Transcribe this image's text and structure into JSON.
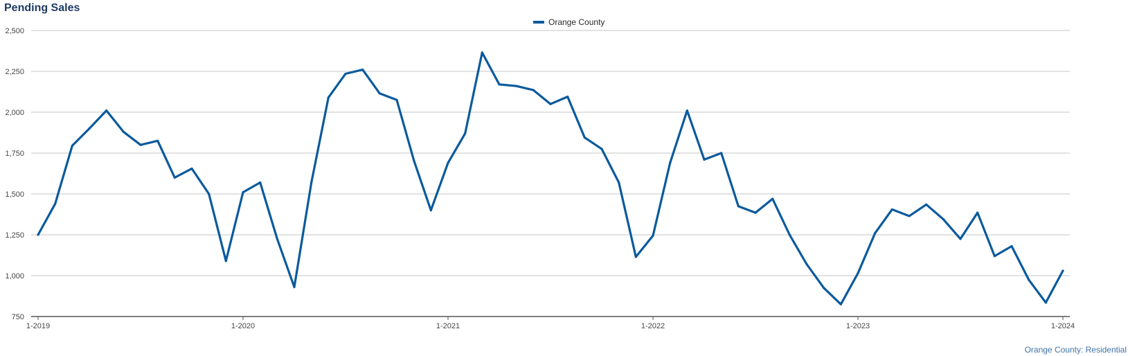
{
  "page": {
    "footer_label": "Orange County: Residential"
  },
  "chart_data": {
    "type": "line",
    "title": "Pending Sales",
    "xlabel": "",
    "ylabel": "",
    "ylim": [
      750,
      2500
    ],
    "y_ticks": [
      750,
      1000,
      1250,
      1500,
      1750,
      2000,
      2250,
      2500
    ],
    "y_tick_labels": [
      "750",
      "1,000",
      "1,250",
      "1,500",
      "1,750",
      "2,000",
      "2,250",
      "2,500"
    ],
    "x_tick_labels": [
      "1-2019",
      "1-2020",
      "1-2021",
      "1-2022",
      "1-2023",
      "1-2024"
    ],
    "x_tick_indices": [
      0,
      12,
      24,
      36,
      48,
      60
    ],
    "grid": true,
    "legend_position": "top-center",
    "color": "#0a5a9c",
    "series": [
      {
        "name": "Orange County",
        "values": [
          1250,
          1440,
          1795,
          1900,
          2010,
          1880,
          1800,
          1825,
          1600,
          1655,
          1500,
          1090,
          1510,
          1570,
          1225,
          930,
          1570,
          2090,
          2235,
          2260,
          2115,
          2075,
          1705,
          1400,
          1690,
          1870,
          2365,
          2170,
          2160,
          2135,
          2050,
          2095,
          1845,
          1775,
          1570,
          1115,
          1245,
          1690,
          2010,
          1710,
          1750,
          1425,
          1385,
          1470,
          1250,
          1070,
          925,
          825,
          1015,
          1260,
          1405,
          1365,
          1435,
          1345,
          1225,
          1385,
          1120,
          1180,
          975,
          835,
          1030
        ]
      }
    ]
  }
}
